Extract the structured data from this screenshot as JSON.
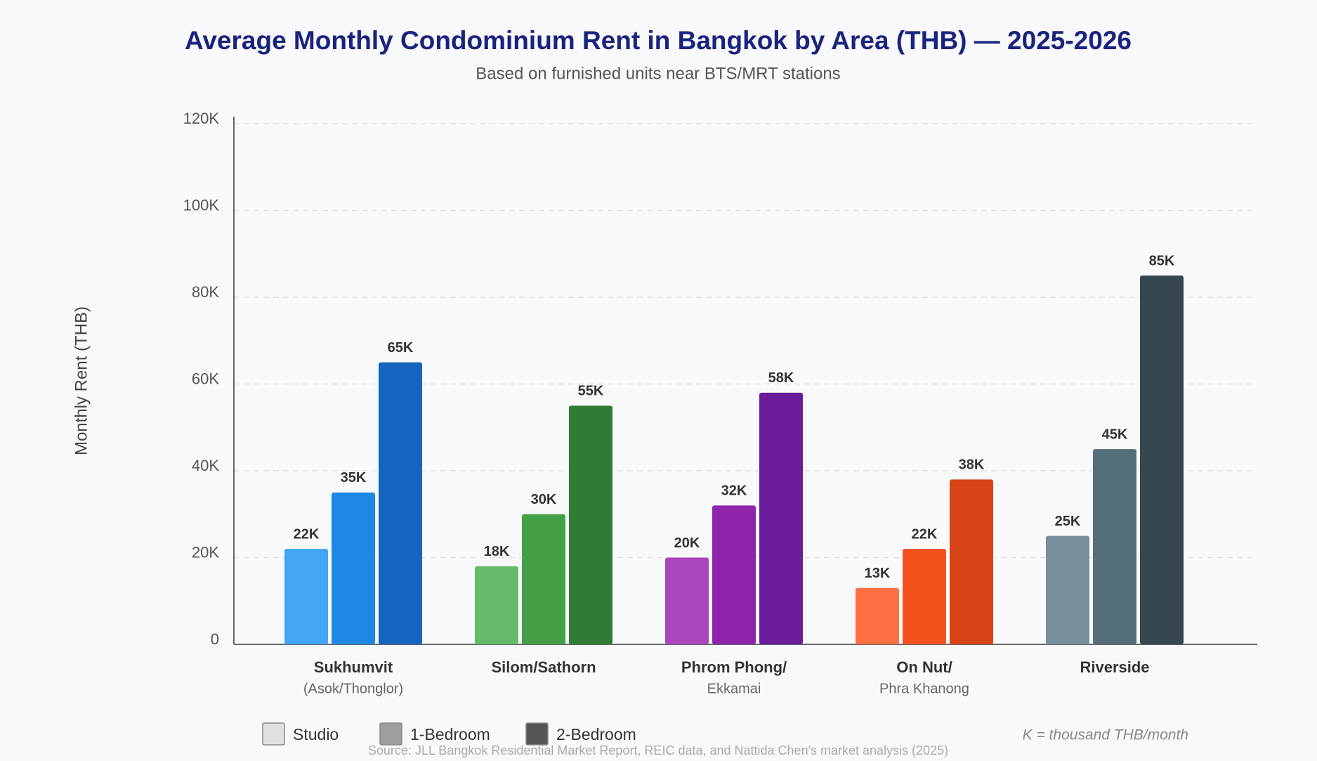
{
  "chart_data": {
    "type": "bar",
    "title": "Average Monthly Condominium Rent in Bangkok by Area (THB) — 2025-2026",
    "subtitle": "Based on furnished units near BTS/MRT stations",
    "y_label": "Monthly Rent (THB)",
    "categories": [
      "Sukhumvit",
      "Silom/Sathorn",
      "Phrom Phong/",
      "On Nut/",
      "Riverside"
    ],
    "category_sublabels": [
      "(Asok/Thonglor)",
      null,
      "Ekkamai",
      "Phra Khanong",
      null
    ],
    "series": [
      {
        "name": "Studio",
        "color": "#e0e0e0",
        "colors": [
          "#42a5f5",
          "#66bb6a",
          "#ab47bc",
          "#ff7043",
          "#78909c"
        ],
        "values": [
          22000,
          18000,
          20000,
          13000,
          25000
        ],
        "value_labels": [
          "22K",
          "18K",
          "20K",
          "13K",
          "25K"
        ]
      },
      {
        "name": "1-Bedroom",
        "color": "#9e9e9e",
        "colors": [
          "#1e88e5",
          "#43a047",
          "#8e24aa",
          "#f4511e",
          "#546e7a"
        ],
        "values": [
          35000,
          30000,
          32000,
          22000,
          45000
        ],
        "value_labels": [
          "35K",
          "30K",
          "32K",
          "22K",
          "45K"
        ]
      },
      {
        "name": "2-Bedroom",
        "color": "#555555",
        "colors": [
          "#1565c0",
          "#2e7d32",
          "#6a1b9a",
          "#d84315",
          "#37474f"
        ],
        "values": [
          65000,
          55000,
          58000,
          38000,
          85000
        ],
        "value_labels": [
          "65K",
          "55K",
          "58K",
          "38K",
          "85K"
        ]
      }
    ],
    "ylim": [
      0,
      120000
    ],
    "yticks": [
      0,
      {
        "value": 20000,
        "label": "20K"
      },
      {
        "value": 40000,
        "label": "40K"
      },
      {
        "value": 60000,
        "label": "60K"
      },
      {
        "value": 80000,
        "label": "80K"
      },
      {
        "value": 100000,
        "label": "100K"
      },
      {
        "value": 120000,
        "label": "120K"
      }
    ],
    "grid": true,
    "note": "K = thousand THB/month",
    "source": "Source: JLL Bangkok Residential Market Report, REIC data, and Nattida Chen's market analysis (2025)"
  }
}
